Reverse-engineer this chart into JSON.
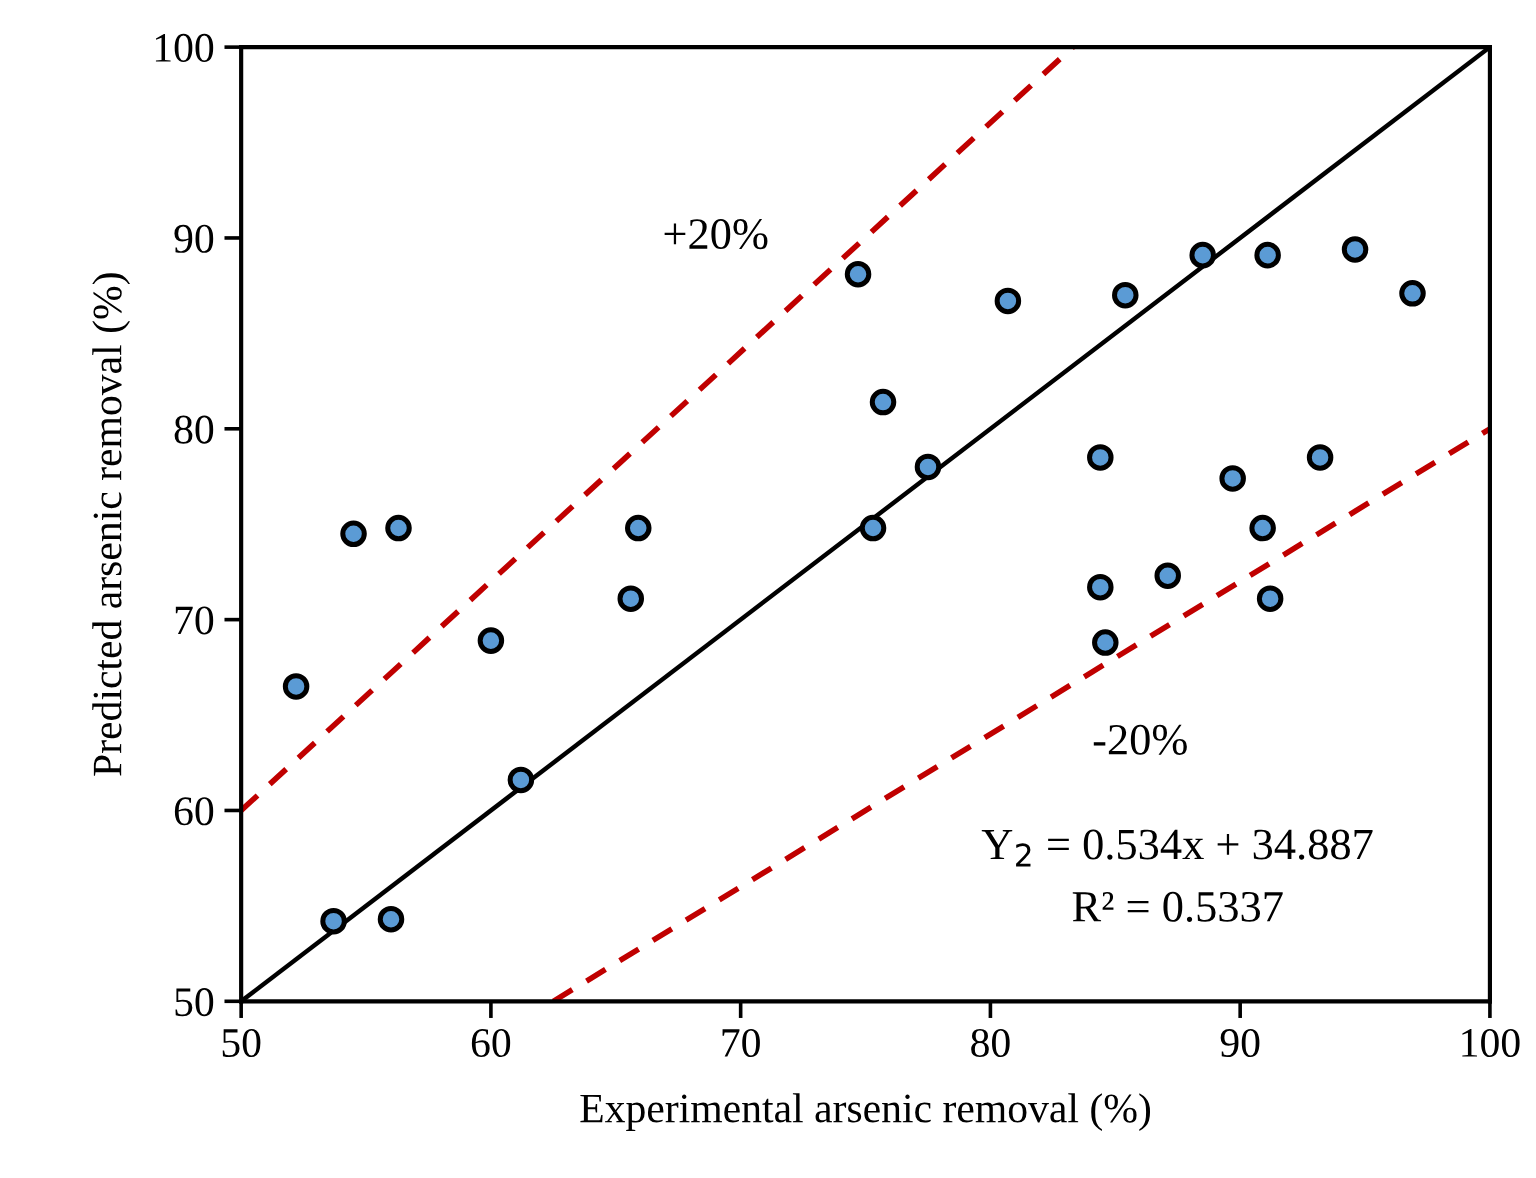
{
  "chart_data": {
    "type": "scatter",
    "xlabel": "Experimental arsenic removal (%)",
    "ylabel": "Predicted arsenic removal (%)",
    "xlim": [
      50,
      100
    ],
    "ylim": [
      50,
      100
    ],
    "xticks": [
      50,
      60,
      70,
      80,
      90,
      100
    ],
    "yticks": [
      50,
      60,
      70,
      80,
      90,
      100
    ],
    "grid": false,
    "legend": false,
    "series": [
      {
        "type": "line",
        "color": "#000000",
        "line_style": "solid",
        "marker": "none",
        "x": [
          50,
          100
        ],
        "values": [
          50,
          100
        ]
      },
      {
        "type": "line",
        "color": "#c00000",
        "line_style": "dashed",
        "marker": "none",
        "x": [
          50,
          83.3
        ],
        "values": [
          60,
          100
        ]
      },
      {
        "type": "line",
        "color": "#c00000",
        "line_style": "dashed",
        "marker": "none",
        "x": [
          62.5,
          100
        ],
        "values": [
          50,
          80
        ]
      },
      {
        "color": "#5b9bd5",
        "marker": "circle",
        "x": [
          52.2,
          54.5,
          56.3,
          60.0,
          61.2,
          53.7,
          56.0,
          65.6,
          65.9,
          74.7,
          75.7,
          75.3,
          77.5,
          80.7,
          85.4,
          88.5,
          91.1,
          94.6,
          96.9,
          84.4,
          89.7,
          93.2,
          90.9,
          84.4,
          87.1,
          91.2,
          84.6
        ],
        "values": [
          66.5,
          74.5,
          74.8,
          68.9,
          61.6,
          54.2,
          54.3,
          71.1,
          74.8,
          88.1,
          81.4,
          74.8,
          78.0,
          86.7,
          87.0,
          89.1,
          89.1,
          89.4,
          87.1,
          78.5,
          77.4,
          78.5,
          74.8,
          71.7,
          72.3,
          71.1,
          68.8
        ]
      }
    ],
    "annotations": [
      "+20%",
      "-20%",
      "Y$_{2}$ = 0.534x + 34.887",
      "R² = 0.5337"
    ]
  }
}
